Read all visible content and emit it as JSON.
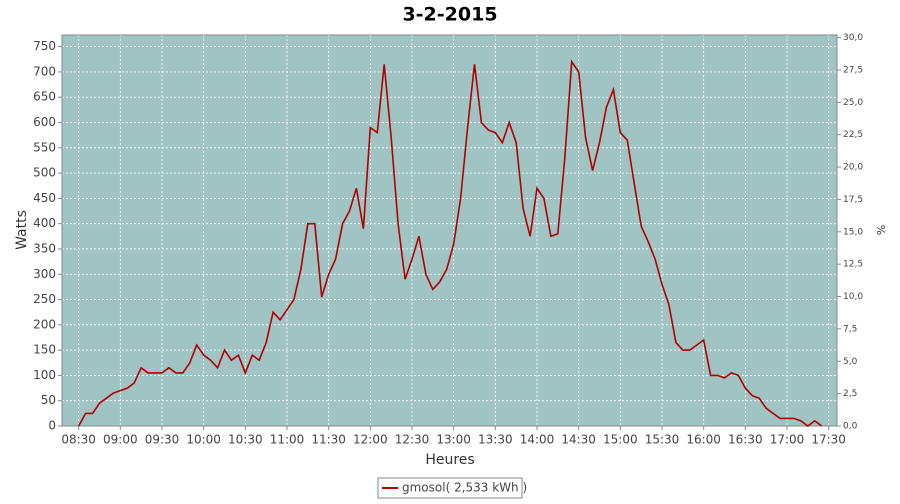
{
  "chart_data": {
    "type": "line",
    "title": "3-2-2015",
    "x_label": "Heures",
    "y_label": "Watts",
    "y2_label": "%",
    "x": [
      510,
      515,
      520,
      525,
      530,
      535,
      540,
      545,
      550,
      555,
      560,
      565,
      570,
      575,
      580,
      585,
      590,
      595,
      600,
      605,
      610,
      615,
      620,
      625,
      630,
      635,
      640,
      645,
      650,
      655,
      660,
      665,
      670,
      675,
      680,
      685,
      690,
      695,
      700,
      705,
      710,
      715,
      720,
      725,
      730,
      735,
      740,
      745,
      750,
      755,
      760,
      765,
      770,
      775,
      780,
      785,
      790,
      795,
      800,
      805,
      810,
      815,
      820,
      825,
      830,
      835,
      840,
      845,
      850,
      855,
      860,
      865,
      870,
      875,
      880,
      885,
      890,
      895,
      900,
      905,
      910,
      915,
      920,
      925,
      930,
      935,
      940,
      945,
      950,
      955,
      960,
      965,
      970,
      975,
      980,
      985,
      990,
      995,
      1000,
      1005,
      1010,
      1015,
      1020,
      1025,
      1030,
      1035,
      1040,
      1045
    ],
    "series": [
      {
        "name": "gmosol( 2,533 kWh )",
        "color": "#b00000",
        "values": [
          0,
          25,
          25,
          45,
          55,
          65,
          70,
          75,
          85,
          115,
          105,
          105,
          105,
          115,
          105,
          105,
          125,
          160,
          140,
          130,
          115,
          150,
          130,
          140,
          105,
          140,
          130,
          165,
          225,
          210,
          230,
          250,
          310,
          400,
          400,
          255,
          300,
          330,
          400,
          425,
          470,
          390,
          590,
          580,
          715,
          570,
          400,
          290,
          330,
          375,
          300,
          270,
          285,
          310,
          360,
          450,
          590,
          715,
          600,
          585,
          580,
          560,
          600,
          560,
          430,
          375,
          470,
          450,
          375,
          380,
          530,
          720,
          700,
          570,
          505,
          560,
          630,
          665,
          580,
          565,
          480,
          395,
          365,
          330,
          280,
          240,
          165,
          150,
          150,
          160,
          170,
          100,
          100,
          95,
          105,
          100,
          75,
          60,
          55,
          35,
          25,
          15,
          15,
          15,
          10,
          0,
          10,
          0
        ]
      }
    ],
    "xlim": [
      498,
      1056
    ],
    "xticks": [
      {
        "value": 510,
        "label": "08:30"
      },
      {
        "value": 540,
        "label": "09:00"
      },
      {
        "value": 570,
        "label": "09:30"
      },
      {
        "value": 600,
        "label": "10:00"
      },
      {
        "value": 630,
        "label": "10:30"
      },
      {
        "value": 660,
        "label": "11:00"
      },
      {
        "value": 690,
        "label": "11:30"
      },
      {
        "value": 720,
        "label": "12:00"
      },
      {
        "value": 750,
        "label": "12:30"
      },
      {
        "value": 780,
        "label": "13:00"
      },
      {
        "value": 810,
        "label": "13:30"
      },
      {
        "value": 840,
        "label": "14:00"
      },
      {
        "value": 870,
        "label": "14:30"
      },
      {
        "value": 900,
        "label": "15:00"
      },
      {
        "value": 930,
        "label": "15:30"
      },
      {
        "value": 960,
        "label": "16:00"
      },
      {
        "value": 990,
        "label": "16:30"
      },
      {
        "value": 1020,
        "label": "17:00"
      },
      {
        "value": 1050,
        "label": "17:30"
      }
    ],
    "ylim": [
      0,
      773
    ],
    "yticks": [
      0,
      50,
      100,
      150,
      200,
      250,
      300,
      350,
      400,
      450,
      500,
      550,
      600,
      650,
      700,
      750
    ],
    "y2lim": [
      0,
      30.2
    ],
    "y2ticks": [
      {
        "value": 0,
        "label": "0,0"
      },
      {
        "value": 2.5,
        "label": "2,5"
      },
      {
        "value": 5,
        "label": "5,0"
      },
      {
        "value": 7.5,
        "label": "7,5"
      },
      {
        "value": 10,
        "label": "10,0"
      },
      {
        "value": 12.5,
        "label": "12,5"
      },
      {
        "value": 15,
        "label": "15,0"
      },
      {
        "value": 17.5,
        "label": "17,5"
      },
      {
        "value": 20,
        "label": "20,0"
      },
      {
        "value": 22.5,
        "label": "22,5"
      },
      {
        "value": 25,
        "label": "25,0"
      },
      {
        "value": 27.5,
        "label": "27,5"
      },
      {
        "value": 30,
        "label": "30,0"
      }
    ],
    "grid": true,
    "plot_background": "#a0c4c4",
    "legend": "bottom"
  }
}
